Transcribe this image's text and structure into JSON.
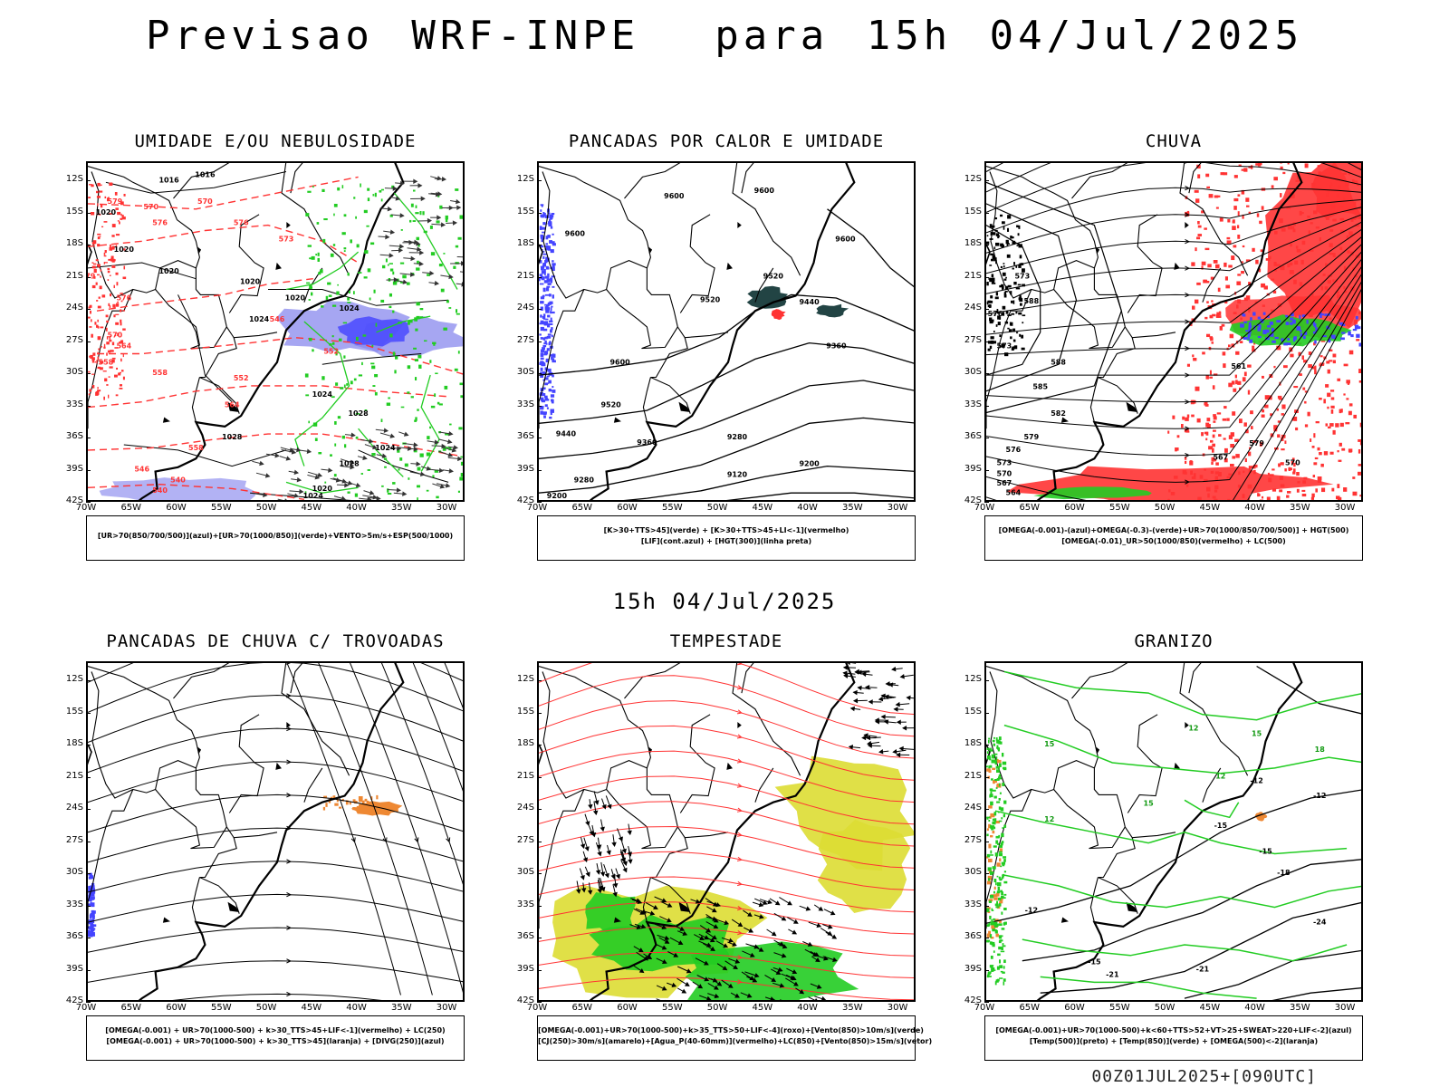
{
  "title": "Previsao WRF-INPE  para 15h 04/Jul/2025",
  "mid_title": "15h 04/Jul/2025",
  "footer": "00Z01JUL2025+[090UTC]",
  "lat_labels": [
    "12S",
    "15S",
    "18S",
    "21S",
    "24S",
    "27S",
    "30S",
    "33S",
    "36S",
    "39S",
    "42S"
  ],
  "lon_labels": [
    "70W",
    "65W",
    "60W",
    "55W",
    "50W",
    "45W",
    "40W",
    "35W",
    "30W"
  ],
  "colors": {
    "blue": "#4444ff",
    "green": "#22cc22",
    "red": "#ff3333",
    "orange": "#ee8833",
    "yellow": "#dddd33",
    "purple_blue": "#8888ee",
    "dark_teal": "#224444"
  },
  "panels": [
    {
      "id": "umidade",
      "title": "UMIDADE E/OU NEBULOSIDADE",
      "legend": [
        "[UR>70(850/700/500)](azul)+[UR>70(1000/850)](verde)+VENTO>5m/s+ESP(500/1000)"
      ],
      "contour_labels": [
        "1016",
        "1016",
        "1020",
        "1020",
        "1020",
        "1020",
        "1020",
        "1024",
        "1024",
        "1024",
        "1028",
        "1028",
        "1024",
        "1028",
        "1024",
        "1020",
        "576",
        "579",
        "570",
        "570",
        "576",
        "573",
        "579",
        "576",
        "570",
        "564",
        "558",
        "558",
        "552",
        "546",
        "552",
        "564",
        "558",
        "546",
        "540",
        "540"
      ]
    },
    {
      "id": "pancadas-calor",
      "title": "PANCADAS POR CALOR E UMIDADE",
      "legend": [
        "[K>30+TTS>45](verde) + [K>30+TTS>45+LI<-1](vermelho)",
        "[LIF](cont.azul) + [HGT(300)](linha preta)"
      ],
      "contour_labels": [
        "9600",
        "9600",
        "9600",
        "9600",
        "9520",
        "9520",
        "9440",
        "9360",
        "9600",
        "9520",
        "9440",
        "9360",
        "9280",
        "9280",
        "9200",
        "9120",
        "9200"
      ]
    },
    {
      "id": "chuva",
      "title": "CHUVA",
      "legend": [
        "[OMEGA(-0.001)-(azul)+OMEGA(-0.3)-(verde)+UR>70(1000/850/700/500)] + HGT(500)",
        "[OMEGA(-0.01)_UR>50(1000/850)(vermelho) + LC(500)"
      ],
      "contour_labels": [
        "573",
        "588",
        "588",
        "576",
        "573",
        "585",
        "582",
        "579",
        "576",
        "573",
        "570",
        "567",
        "564",
        "561",
        "579",
        "570",
        "567"
      ]
    },
    {
      "id": "trovoadas",
      "title": "PANCADAS DE CHUVA C/ TROVOADAS",
      "legend": [
        "[OMEGA(-0.001) + UR>70(1000-500) + k>30_TTS>45+LIF<-1](vermelho) + LC(250)",
        "[OMEGA(-0.001) + UR>70(1000-500) + k>30_TTS>45](laranja) + [DIVG(250)](azul)"
      ],
      "contour_labels": []
    },
    {
      "id": "tempestade",
      "title": "TEMPESTADE",
      "legend": [
        "[OMEGA(-0.001)+UR>70(1000-500)+k>35_TTS>50+LIF<-4](roxo)+[Vento(850)>10m/s](verde)",
        "[CJ(250)>30m/s](amarelo)+[Agua_P(40-60mm)](vermelho)+LC(850)+[Vento(850)>15m/s](vetor)"
      ],
      "contour_labels": []
    },
    {
      "id": "granizo",
      "title": "GRANIZO",
      "legend": [
        "[OMEGA(-0.001)+UR>70(1000-500)+k<60+TTS>52+VT>25+SWEAT>220+LIF<-2](azul)",
        "[Temp(500)](preto) + [Temp(850)](verde) + [OMEGA(500)<-2](laranja)"
      ],
      "contour_labels": [
        "-15",
        "-12",
        "-12",
        "-15",
        "-18",
        "-12",
        "-15",
        "-21",
        "-21",
        "-24",
        "15",
        "12",
        "12",
        "18",
        "12",
        "15",
        "15"
      ]
    }
  ]
}
